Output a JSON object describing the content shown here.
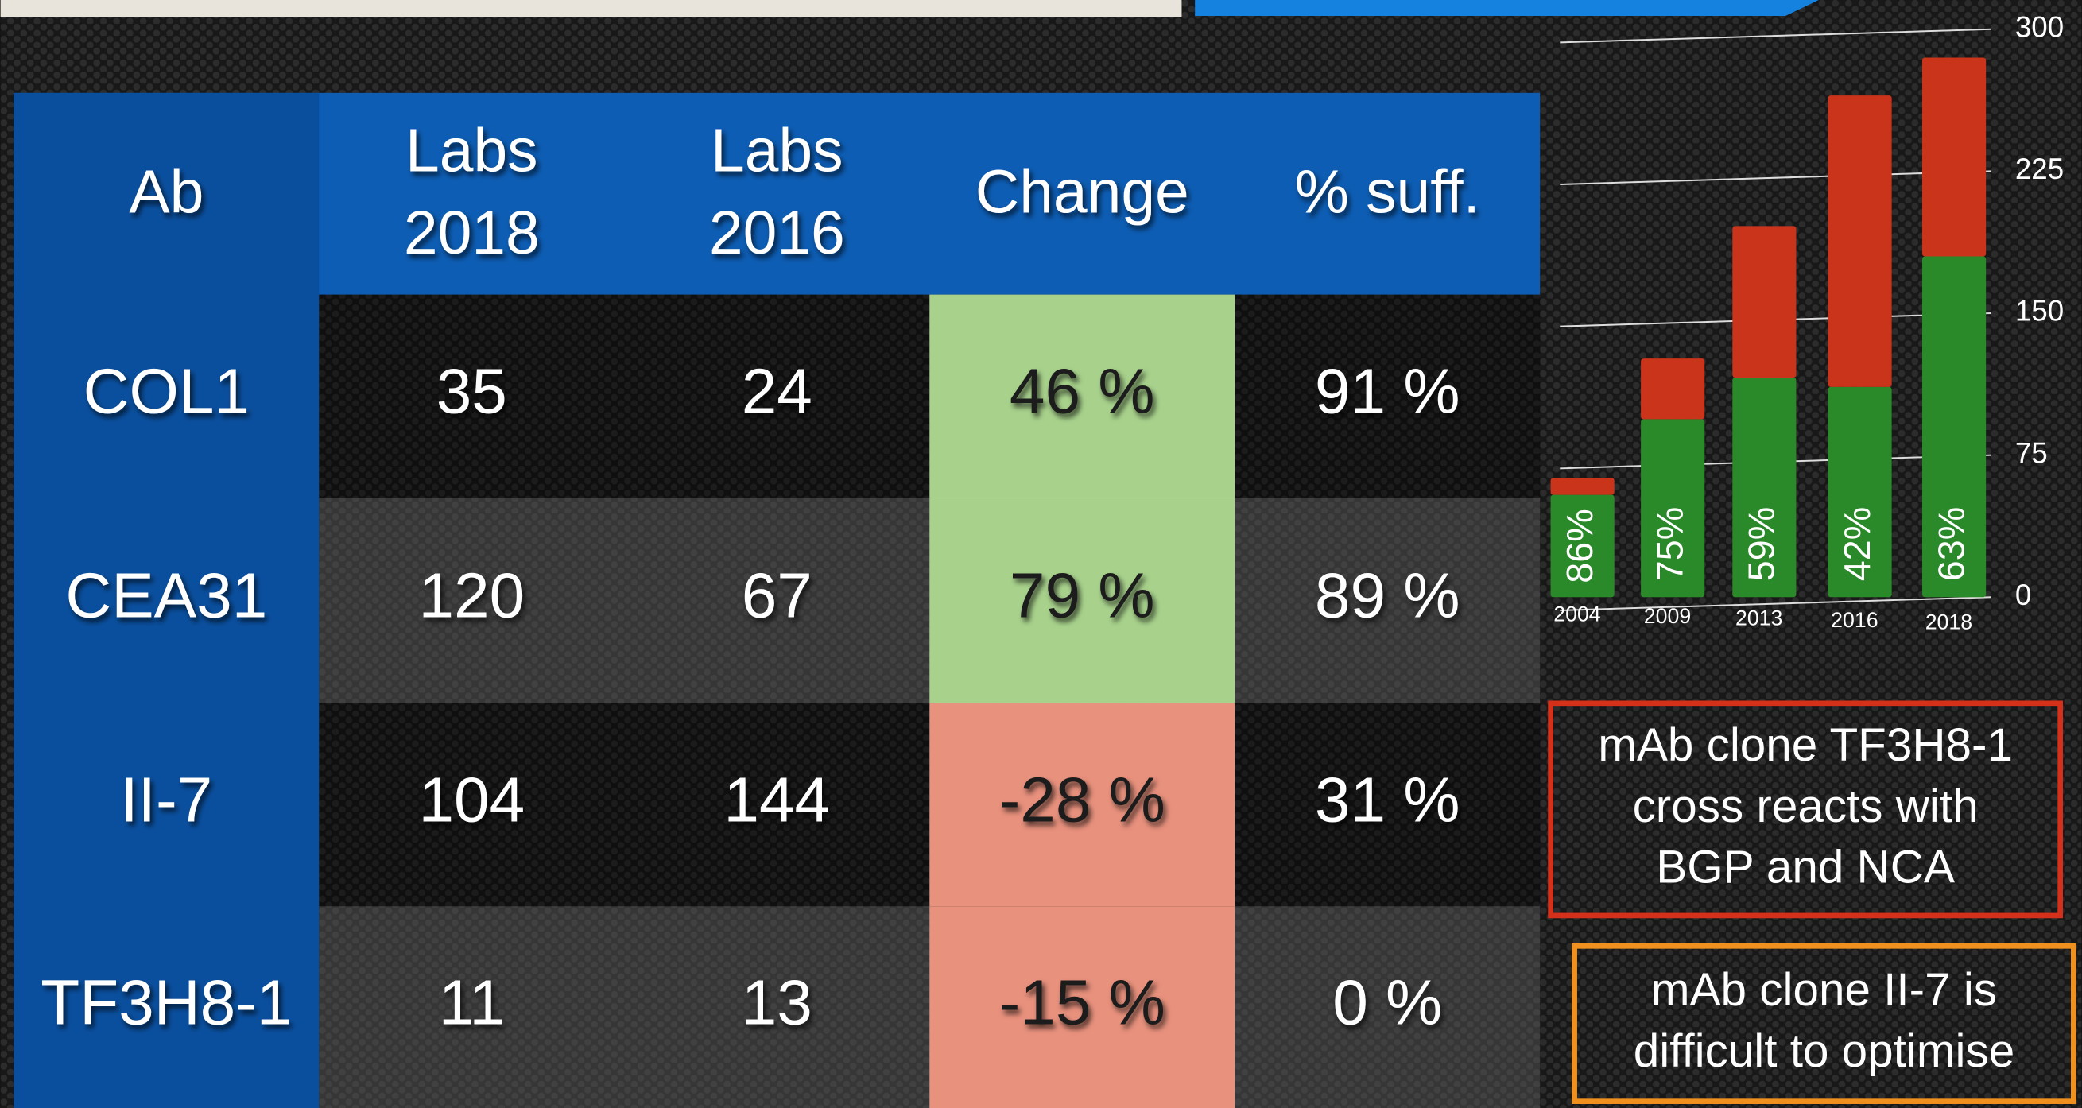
{
  "table": {
    "header": [
      [
        "Ab"
      ],
      [
        "Labs",
        "2018"
      ],
      [
        "Labs",
        "2016"
      ],
      [
        "Change"
      ],
      [
        "% suff."
      ]
    ],
    "rows": [
      [
        "COL1",
        "35",
        "24",
        "46 %",
        "91 %"
      ],
      [
        "CEA31",
        "120",
        "67",
        "79 %",
        "89 %"
      ],
      [
        "II-7",
        "104",
        "144",
        "-28 %",
        "31 %"
      ],
      [
        "TF3H8-1",
        "11",
        "13",
        "-15 %",
        "0 %"
      ]
    ],
    "highlight": [
      "#a8d28c",
      "#a8d28c",
      "#e8917d",
      "#e8917d"
    ]
  },
  "chart_data": {
    "type": "stacked-bar",
    "categories": [
      "2004",
      "2009",
      "2013",
      "2016",
      "2018"
    ],
    "series": [
      {
        "color": "#2a8a2a",
        "values": [
          54,
          94,
          116,
          111,
          180
        ]
      },
      {
        "color": "#c9341a",
        "values": [
          9,
          32,
          80,
          154,
          105
        ]
      }
    ],
    "labels": [
      "86%",
      "75%",
      "59%",
      "42%",
      "63%"
    ],
    "ylim": [
      0,
      300
    ],
    "yticks": [
      0,
      75,
      150,
      225,
      300
    ],
    "grid": true
  },
  "notes": [
    {
      "lines": [
        "mAb clone TF3H8-1",
        "cross reacts with",
        "BGP and NCA"
      ],
      "color": "#d4301a"
    },
    {
      "lines": [
        "mAb clone II-7 is",
        "difficult to optimise"
      ],
      "color": "#f0901e"
    }
  ]
}
